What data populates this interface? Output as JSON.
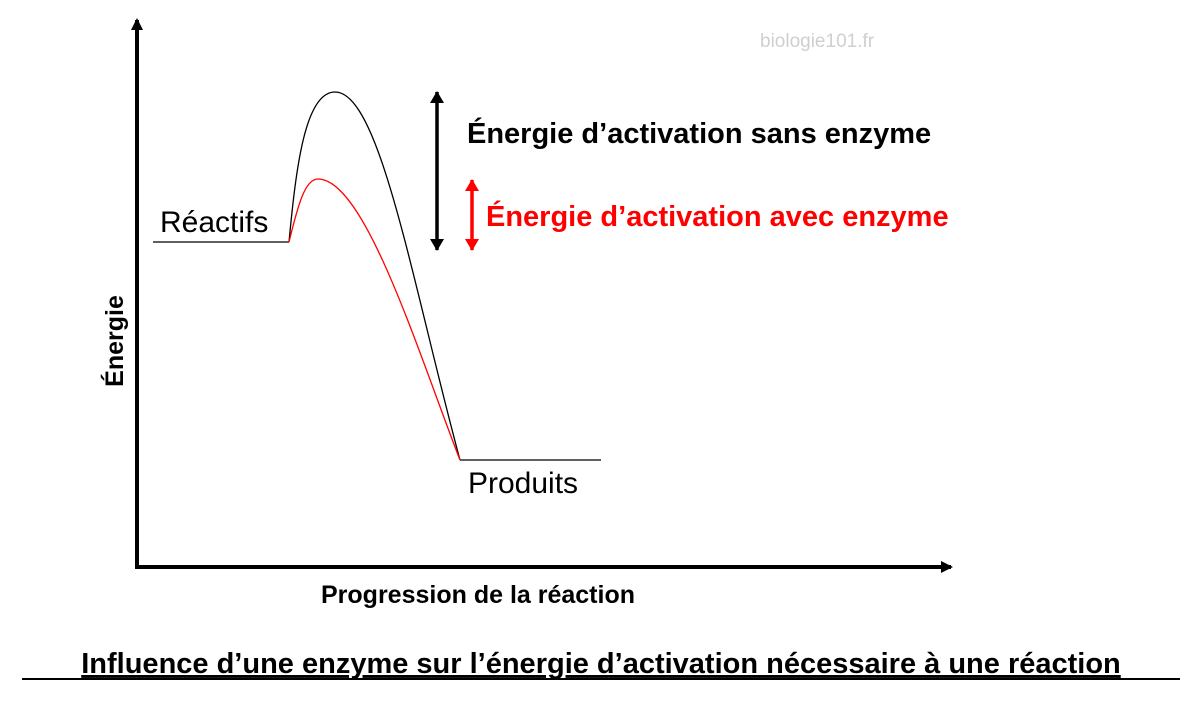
{
  "watermark": "biologie101.fr",
  "labels": {
    "reactants": "Réactifs",
    "products": "Produits",
    "activation_without": "Énergie d’activation sans enzyme",
    "activation_with": "Énergie d’activation avec enzyme"
  },
  "axes": {
    "x_label": "Progression de la réaction",
    "y_label": "Énergie"
  },
  "caption": "Influence d’une enzyme sur l’énergie d’activation nécessaire à une réaction",
  "colors": {
    "without_enzyme": "#000000",
    "with_enzyme": "#ff0000",
    "watermark": "#cfcfcf"
  }
}
